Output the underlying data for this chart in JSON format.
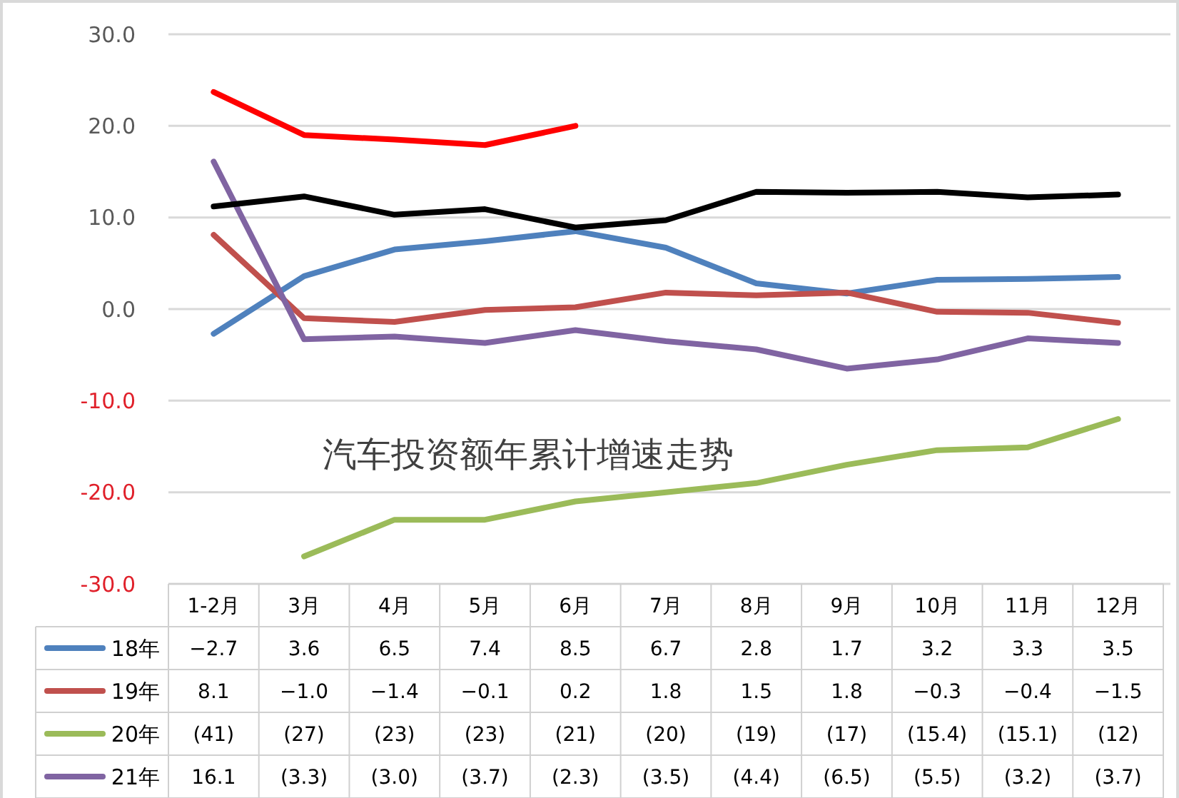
{
  "chart_data": {
    "type": "line",
    "title": "汽车投资额年累计增速走势",
    "categories": [
      "1-2月",
      "3月",
      "4月",
      "5月",
      "6月",
      "7月",
      "8月",
      "9月",
      "10月",
      "11月",
      "12月"
    ],
    "ylim": [
      -30,
      30
    ],
    "yticks": [
      {
        "value": 30,
        "label": "30.0"
      },
      {
        "value": 20,
        "label": "20.0"
      },
      {
        "value": 10,
        "label": "10.0"
      },
      {
        "value": 0,
        "label": "0.0"
      },
      {
        "value": -10,
        "label": "-10.0"
      },
      {
        "value": -20,
        "label": "-20.0"
      },
      {
        "value": -30,
        "label": "-30.0"
      }
    ],
    "grid": "y",
    "legend": "bottom",
    "line_style": "solid",
    "marker": "none",
    "series": [
      {
        "name": "18年",
        "color": "#4f81bd",
        "values": [
          -2.7,
          3.6,
          6.5,
          7.4,
          8.5,
          6.7,
          2.8,
          1.7,
          3.2,
          3.3,
          3.5
        ],
        "value_labels": [
          "−2.7",
          "3.6",
          "6.5",
          "7.4",
          "8.5",
          "6.7",
          "2.8",
          "1.7",
          "3.2",
          "3.3",
          "3.5"
        ]
      },
      {
        "name": "19年",
        "color": "#c0504d",
        "values": [
          8.1,
          -1.0,
          -1.4,
          -0.1,
          0.2,
          1.8,
          1.5,
          1.8,
          -0.3,
          -0.4,
          -1.5
        ],
        "value_labels": [
          "8.1",
          "−1.0",
          "−1.4",
          "−0.1",
          "0.2",
          "1.8",
          "1.5",
          "1.8",
          "−0.3",
          "−0.4",
          "−1.5"
        ]
      },
      {
        "name": "20年",
        "color": "#9bbb59",
        "values": [
          null,
          -27,
          -23,
          -23,
          -21,
          -20,
          -19,
          -17,
          -15.4,
          -15.1,
          -12
        ],
        "value_labels": [
          "(41)",
          "(27)",
          "(23)",
          "(23)",
          "(21)",
          "(20)",
          "(19)",
          "(17)",
          "(15.4)",
          "(15.1)",
          "(12)"
        ]
      },
      {
        "name": "21年",
        "color": "#8064a2",
        "values": [
          16.1,
          -3.3,
          -3.0,
          -3.7,
          -2.3,
          -3.5,
          -4.4,
          -6.5,
          -5.5,
          -3.2,
          -3.7
        ],
        "value_labels": [
          "16.1",
          "(3.3)",
          "(3.0)",
          "(3.7)",
          "(2.3)",
          "(3.5)",
          "(4.4)",
          "(6.5)",
          "(5.5)",
          "(3.2)",
          "(3.7)"
        ]
      },
      {
        "color": "#000000",
        "values": [
          11.2,
          12.3,
          10.3,
          10.9,
          8.9,
          9.7,
          12.8,
          12.7,
          12.8,
          12.2,
          12.5
        ]
      },
      {
        "color": "#ff0000",
        "values": [
          23.7,
          19.0,
          18.5,
          17.9,
          20.0,
          null,
          null,
          null,
          null,
          null,
          null
        ]
      }
    ]
  }
}
